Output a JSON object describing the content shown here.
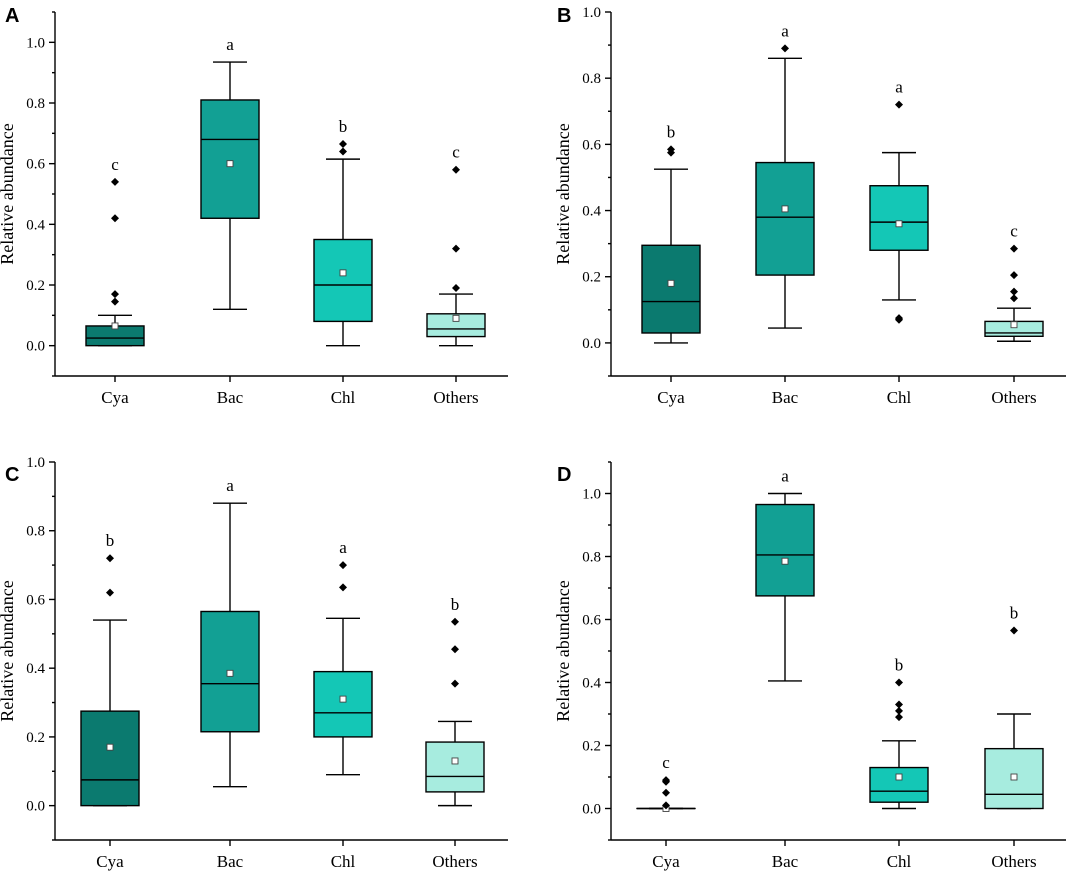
{
  "chart_data": [
    {
      "type": "box",
      "panel_label": "A",
      "ylabel": "Relative abundance",
      "ylim": [
        -0.1,
        1.1
      ],
      "yticks": [
        0.0,
        0.2,
        0.4,
        0.6,
        0.8,
        1.0
      ],
      "ytick_labels": [
        "0.0",
        "0.2",
        "0.4",
        "0.6",
        "0.8",
        "1.0"
      ],
      "categories": [
        "Cya",
        "Bac",
        "Chl",
        "Others"
      ],
      "boxes": [
        {
          "category": "Cya",
          "min": 0.0,
          "q1": 0.0,
          "median": 0.025,
          "q3": 0.065,
          "max": 0.1,
          "mean": 0.065,
          "outliers": [
            0.145,
            0.17,
            0.42,
            0.54
          ],
          "letter": "c",
          "color": "#0b7a6f"
        },
        {
          "category": "Bac",
          "min": 0.12,
          "q1": 0.42,
          "median": 0.68,
          "q3": 0.81,
          "max": 0.935,
          "mean": 0.6,
          "outliers": [],
          "letter": "a",
          "color": "#12a094"
        },
        {
          "category": "Chl",
          "min": 0.0,
          "q1": 0.08,
          "median": 0.2,
          "q3": 0.35,
          "max": 0.615,
          "mean": 0.24,
          "outliers": [
            0.64,
            0.665
          ],
          "letter": "b",
          "color": "#14c7b6"
        },
        {
          "category": "Others",
          "min": 0.0,
          "q1": 0.03,
          "median": 0.055,
          "q3": 0.105,
          "max": 0.17,
          "mean": 0.09,
          "outliers": [
            0.19,
            0.32,
            0.58
          ],
          "letter": "c",
          "color": "#a7ecdf"
        }
      ]
    },
    {
      "type": "box",
      "panel_label": "B",
      "ylabel": "Relative abundance",
      "ylim": [
        -0.1,
        1.0
      ],
      "yticks": [
        0.0,
        0.2,
        0.4,
        0.6,
        0.8,
        1.0
      ],
      "ytick_labels": [
        "0.0",
        "0.2",
        "0.4",
        "0.6",
        "0.8",
        "1.0"
      ],
      "categories": [
        "Cya",
        "Bac",
        "Chl",
        "Others"
      ],
      "boxes": [
        {
          "category": "Cya",
          "min": 0.0,
          "q1": 0.03,
          "median": 0.125,
          "q3": 0.295,
          "max": 0.525,
          "mean": 0.18,
          "outliers": [
            0.575,
            0.585
          ],
          "letter": "b",
          "color": "#0b7a6f"
        },
        {
          "category": "Bac",
          "min": 0.045,
          "q1": 0.205,
          "median": 0.38,
          "q3": 0.545,
          "max": 0.86,
          "mean": 0.405,
          "outliers": [
            0.89
          ],
          "letter": "a",
          "color": "#12a094"
        },
        {
          "category": "Chl",
          "min": 0.13,
          "q1": 0.28,
          "median": 0.365,
          "q3": 0.475,
          "max": 0.575,
          "mean": 0.36,
          "outliers": [
            0.07,
            0.075,
            0.72
          ],
          "letter": "a",
          "color": "#14c7b6"
        },
        {
          "category": "Others",
          "min": 0.005,
          "q1": 0.02,
          "median": 0.03,
          "q3": 0.065,
          "max": 0.105,
          "mean": 0.055,
          "outliers": [
            0.135,
            0.155,
            0.205,
            0.285
          ],
          "letter": "c",
          "color": "#a7ecdf"
        }
      ]
    },
    {
      "type": "box",
      "panel_label": "C",
      "ylabel": "Relative abundance",
      "ylim": [
        -0.1,
        1.0
      ],
      "yticks": [
        0.0,
        0.2,
        0.4,
        0.6,
        0.8,
        1.0
      ],
      "ytick_labels": [
        "0.0",
        "0.2",
        "0.4",
        "0.6",
        "0.8",
        "1.0"
      ],
      "categories": [
        "Cya",
        "Bac",
        "Chl",
        "Others"
      ],
      "boxes": [
        {
          "category": "Cya",
          "min": 0.0,
          "q1": 0.0,
          "median": 0.075,
          "q3": 0.275,
          "max": 0.54,
          "mean": 0.17,
          "outliers": [
            0.62,
            0.72
          ],
          "letter": "b",
          "color": "#0b7a6f"
        },
        {
          "category": "Bac",
          "min": 0.055,
          "q1": 0.215,
          "median": 0.355,
          "q3": 0.565,
          "max": 0.88,
          "mean": 0.385,
          "outliers": [],
          "letter": "a",
          "color": "#12a094"
        },
        {
          "category": "Chl",
          "min": 0.09,
          "q1": 0.2,
          "median": 0.27,
          "q3": 0.39,
          "max": 0.545,
          "mean": 0.31,
          "outliers": [
            0.635,
            0.7
          ],
          "letter": "a",
          "color": "#14c7b6"
        },
        {
          "category": "Others",
          "min": 0.0,
          "q1": 0.04,
          "median": 0.085,
          "q3": 0.185,
          "max": 0.245,
          "mean": 0.13,
          "outliers": [
            0.355,
            0.455,
            0.535
          ],
          "letter": "b",
          "color": "#a7ecdf"
        }
      ]
    },
    {
      "type": "box",
      "panel_label": "D",
      "ylabel": "Relative abundance",
      "ylim": [
        -0.1,
        1.1
      ],
      "yticks": [
        0.0,
        0.2,
        0.4,
        0.6,
        0.8,
        1.0
      ],
      "ytick_labels": [
        "0.0",
        "0.2",
        "0.4",
        "0.6",
        "0.8",
        "1.0"
      ],
      "categories": [
        "Cya",
        "Bac",
        "Chl",
        "Others"
      ],
      "boxes": [
        {
          "category": "Cya",
          "min": 0.0,
          "q1": 0.0,
          "median": 0.0,
          "q3": 0.0,
          "max": 0.0,
          "mean": 0.0,
          "outliers": [
            0.01,
            0.05,
            0.085,
            0.09
          ],
          "letter": "c",
          "color": "#0b7a6f"
        },
        {
          "category": "Bac",
          "min": 0.405,
          "q1": 0.675,
          "median": 0.805,
          "q3": 0.965,
          "max": 1.0,
          "mean": 0.785,
          "outliers": [],
          "letter": "a",
          "color": "#12a094"
        },
        {
          "category": "Chl",
          "min": 0.0,
          "q1": 0.02,
          "median": 0.055,
          "q3": 0.13,
          "max": 0.215,
          "mean": 0.1,
          "outliers": [
            0.29,
            0.31,
            0.33,
            0.4
          ],
          "letter": "b",
          "color": "#14c7b6"
        },
        {
          "category": "Others",
          "min": 0.0,
          "q1": 0.0,
          "median": 0.045,
          "q3": 0.19,
          "max": 0.3,
          "mean": 0.1,
          "outliers": [
            0.565
          ],
          "letter": "b",
          "color": "#a7ecdf"
        }
      ]
    }
  ]
}
